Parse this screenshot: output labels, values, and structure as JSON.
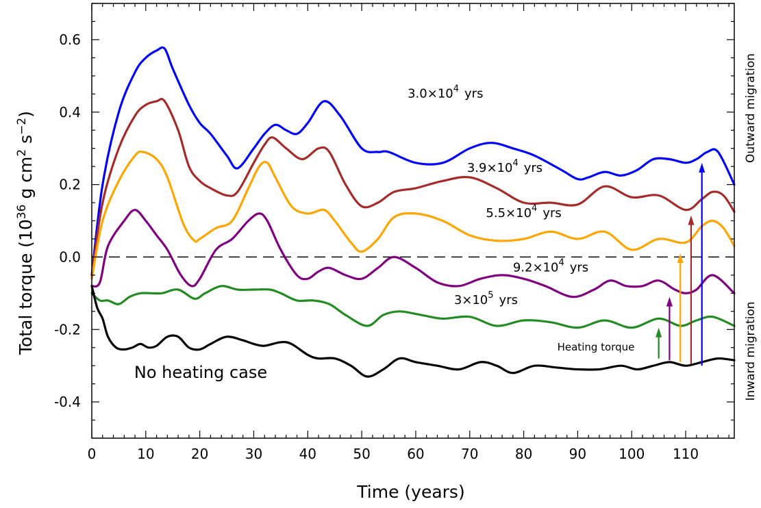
{
  "chart_data": {
    "type": "line",
    "xlabel": "Time (years)",
    "ylabel": {
      "prefix": "Total torque (10",
      "exp1": "36",
      "mid": " g cm",
      "exp2": "2",
      "mid2": " s",
      "exp3": "−2",
      "suffix": ")"
    },
    "xlim": [
      0,
      119
    ],
    "ylim": [
      -0.5,
      0.7
    ],
    "x_ticks": [
      0,
      10,
      20,
      30,
      40,
      50,
      60,
      70,
      80,
      90,
      100,
      110
    ],
    "x_tick_labels": [
      "0",
      "10",
      "20",
      "30",
      "40",
      "50",
      "60",
      "70",
      "80",
      "90",
      "100",
      "110"
    ],
    "y_ticks": [
      -0.4,
      -0.2,
      0.0,
      0.2,
      0.4,
      0.6
    ],
    "y_tick_labels": [
      "-0.4",
      "-0.2",
      "0.0",
      "0.2",
      "0.4",
      "0.6"
    ],
    "reference_line": {
      "y": 0.0,
      "style": "dashed",
      "color": "#000000"
    },
    "right_labels": {
      "upper": "Outward migration",
      "lower": "Inward migration"
    },
    "annotations": {
      "heating_torque": "Heating torque",
      "no_heating": "No heating case"
    },
    "series": [
      {
        "name_parts": [
          "3.0",
          "×",
          "10",
          "4",
          "yrs"
        ],
        "color": "#0000ff",
        "x": [
          0,
          2,
          5,
          8,
          10,
          12,
          13.5,
          15,
          18,
          20,
          22,
          25,
          27,
          30,
          32,
          34,
          36,
          38,
          40,
          43,
          46,
          50,
          53,
          55,
          60,
          65,
          70,
          74,
          78,
          82,
          87,
          90,
          92,
          95,
          98,
          101,
          104,
          107,
          110,
          112,
          114,
          116,
          119
        ],
        "y": [
          -0.05,
          0.2,
          0.4,
          0.51,
          0.55,
          0.57,
          0.575,
          0.52,
          0.42,
          0.37,
          0.34,
          0.28,
          0.245,
          0.3,
          0.34,
          0.365,
          0.35,
          0.34,
          0.37,
          0.43,
          0.39,
          0.3,
          0.29,
          0.29,
          0.26,
          0.26,
          0.3,
          0.315,
          0.3,
          0.28,
          0.24,
          0.215,
          0.22,
          0.235,
          0.225,
          0.24,
          0.27,
          0.27,
          0.26,
          0.27,
          0.29,
          0.29,
          0.2
        ]
      },
      {
        "name_parts": [
          "3.9",
          "×",
          "10",
          "4",
          "yrs"
        ],
        "color": "#a52a2a",
        "x": [
          0,
          2,
          5,
          8,
          10,
          12,
          13.5,
          16,
          18,
          20,
          22,
          25,
          27,
          30,
          32,
          33.5,
          36,
          39,
          42,
          44,
          47,
          50,
          53,
          56,
          60,
          65,
          70,
          75,
          80,
          85,
          90,
          95,
          100,
          105,
          110,
          113,
          115,
          117,
          119
        ],
        "y": [
          -0.05,
          0.15,
          0.3,
          0.39,
          0.42,
          0.43,
          0.43,
          0.35,
          0.25,
          0.21,
          0.19,
          0.17,
          0.18,
          0.26,
          0.31,
          0.33,
          0.3,
          0.27,
          0.3,
          0.29,
          0.2,
          0.14,
          0.15,
          0.18,
          0.19,
          0.21,
          0.22,
          0.19,
          0.15,
          0.15,
          0.145,
          0.195,
          0.165,
          0.17,
          0.13,
          0.16,
          0.18,
          0.17,
          0.125
        ]
      },
      {
        "name_parts": [
          "5.5",
          "×",
          "10",
          "4",
          "yrs"
        ],
        "color": "#ffa500",
        "x": [
          0,
          2,
          5,
          8,
          9.5,
          12,
          14,
          17,
          19,
          20,
          23,
          26,
          29,
          31,
          32.5,
          34,
          37,
          40,
          43,
          45,
          48,
          50,
          53,
          56,
          60,
          65,
          70,
          75,
          80,
          85,
          90,
          95,
          100,
          105,
          110,
          113,
          115,
          117,
          119
        ],
        "y": [
          -0.06,
          0.1,
          0.21,
          0.28,
          0.29,
          0.27,
          0.22,
          0.09,
          0.045,
          0.05,
          0.08,
          0.1,
          0.19,
          0.25,
          0.26,
          0.22,
          0.14,
          0.12,
          0.13,
          0.1,
          0.04,
          0.015,
          0.05,
          0.11,
          0.12,
          0.1,
          0.06,
          0.045,
          0.05,
          0.07,
          0.05,
          0.07,
          0.02,
          0.05,
          0.04,
          0.085,
          0.1,
          0.08,
          0.03
        ]
      },
      {
        "name_parts": [
          "9.2",
          "×",
          "10",
          "4",
          "yrs"
        ],
        "color": "#800080",
        "x": [
          0,
          1.5,
          3,
          6,
          8,
          10,
          12,
          14,
          16.5,
          18.5,
          20,
          23,
          26,
          29,
          31,
          32.5,
          35,
          38,
          40,
          42,
          44,
          47,
          50,
          53,
          56,
          60,
          64,
          68,
          72,
          76,
          80,
          84,
          89,
          93,
          96,
          99,
          102,
          105,
          108,
          110,
          112,
          115,
          119
        ],
        "y": [
          -0.08,
          -0.07,
          0.03,
          0.1,
          0.13,
          0.1,
          0.06,
          0.02,
          -0.05,
          -0.08,
          -0.06,
          0.02,
          0.05,
          0.1,
          0.12,
          0.1,
          0.02,
          -0.05,
          -0.06,
          -0.04,
          -0.03,
          -0.05,
          -0.06,
          -0.03,
          0.0,
          -0.03,
          -0.07,
          -0.08,
          -0.06,
          -0.05,
          -0.06,
          -0.08,
          -0.11,
          -0.09,
          -0.065,
          -0.08,
          -0.08,
          -0.065,
          -0.09,
          -0.1,
          -0.09,
          -0.05,
          -0.1
        ]
      },
      {
        "name_parts": [
          "3",
          "×",
          "10",
          "5",
          "yrs"
        ],
        "color": "#228b22",
        "x": [
          0,
          1.5,
          3,
          5,
          7,
          9,
          11,
          13,
          16,
          19,
          21,
          24,
          27,
          30,
          33,
          35,
          38,
          41,
          44,
          47,
          51,
          54,
          57,
          61,
          65,
          70,
          75,
          80,
          85,
          90,
          95,
          100,
          105,
          109,
          112,
          115,
          119
        ],
        "y": [
          -0.1,
          -0.12,
          -0.12,
          -0.13,
          -0.11,
          -0.1,
          -0.1,
          -0.1,
          -0.09,
          -0.115,
          -0.1,
          -0.08,
          -0.09,
          -0.09,
          -0.09,
          -0.1,
          -0.12,
          -0.12,
          -0.13,
          -0.16,
          -0.19,
          -0.16,
          -0.15,
          -0.16,
          -0.17,
          -0.165,
          -0.19,
          -0.175,
          -0.18,
          -0.195,
          -0.175,
          -0.195,
          -0.17,
          -0.19,
          -0.175,
          -0.165,
          -0.19
        ]
      },
      {
        "name_parts": [],
        "color": "#000000",
        "x": [
          0,
          1,
          2,
          3,
          4.5,
          6,
          7.5,
          9,
          10.5,
          12,
          14,
          16,
          18,
          20,
          22,
          25,
          28,
          30,
          32,
          35,
          37,
          40,
          42,
          45,
          48,
          51,
          54,
          57,
          60,
          64,
          68,
          72,
          75,
          78,
          82,
          86,
          90,
          94,
          98,
          101,
          104,
          107,
          110,
          113,
          116,
          119
        ],
        "y": [
          -0.08,
          -0.14,
          -0.17,
          -0.22,
          -0.25,
          -0.255,
          -0.25,
          -0.24,
          -0.25,
          -0.245,
          -0.22,
          -0.22,
          -0.25,
          -0.255,
          -0.24,
          -0.22,
          -0.23,
          -0.24,
          -0.245,
          -0.235,
          -0.24,
          -0.27,
          -0.28,
          -0.28,
          -0.3,
          -0.33,
          -0.31,
          -0.28,
          -0.29,
          -0.3,
          -0.31,
          -0.29,
          -0.3,
          -0.32,
          -0.3,
          -0.305,
          -0.31,
          -0.31,
          -0.3,
          -0.31,
          -0.3,
          -0.29,
          -0.3,
          -0.29,
          -0.28,
          -0.285
        ]
      }
    ],
    "label_positions": [
      {
        "series": 0,
        "x": 65.5,
        "y": 0.44
      },
      {
        "series": 1,
        "x": 76.5,
        "y": 0.235
      },
      {
        "series": 2,
        "x": 80,
        "y": 0.11
      },
      {
        "series": 3,
        "x": 85,
        "y": -0.04
      },
      {
        "series": 4,
        "x": 73,
        "y": -0.13
      }
    ],
    "arrows": [
      {
        "series": 4,
        "x": 105,
        "y_from": -0.28,
        "y_to": -0.195
      },
      {
        "series": 3,
        "x": 107,
        "y_from": -0.285,
        "y_to": -0.11
      },
      {
        "series": 2,
        "x": 109,
        "y_from": -0.29,
        "y_to": 0.01
      },
      {
        "series": 1,
        "x": 111,
        "y_from": -0.295,
        "y_to": 0.115
      },
      {
        "series": 0,
        "x": 113,
        "y_from": -0.3,
        "y_to": 0.26
      }
    ]
  }
}
